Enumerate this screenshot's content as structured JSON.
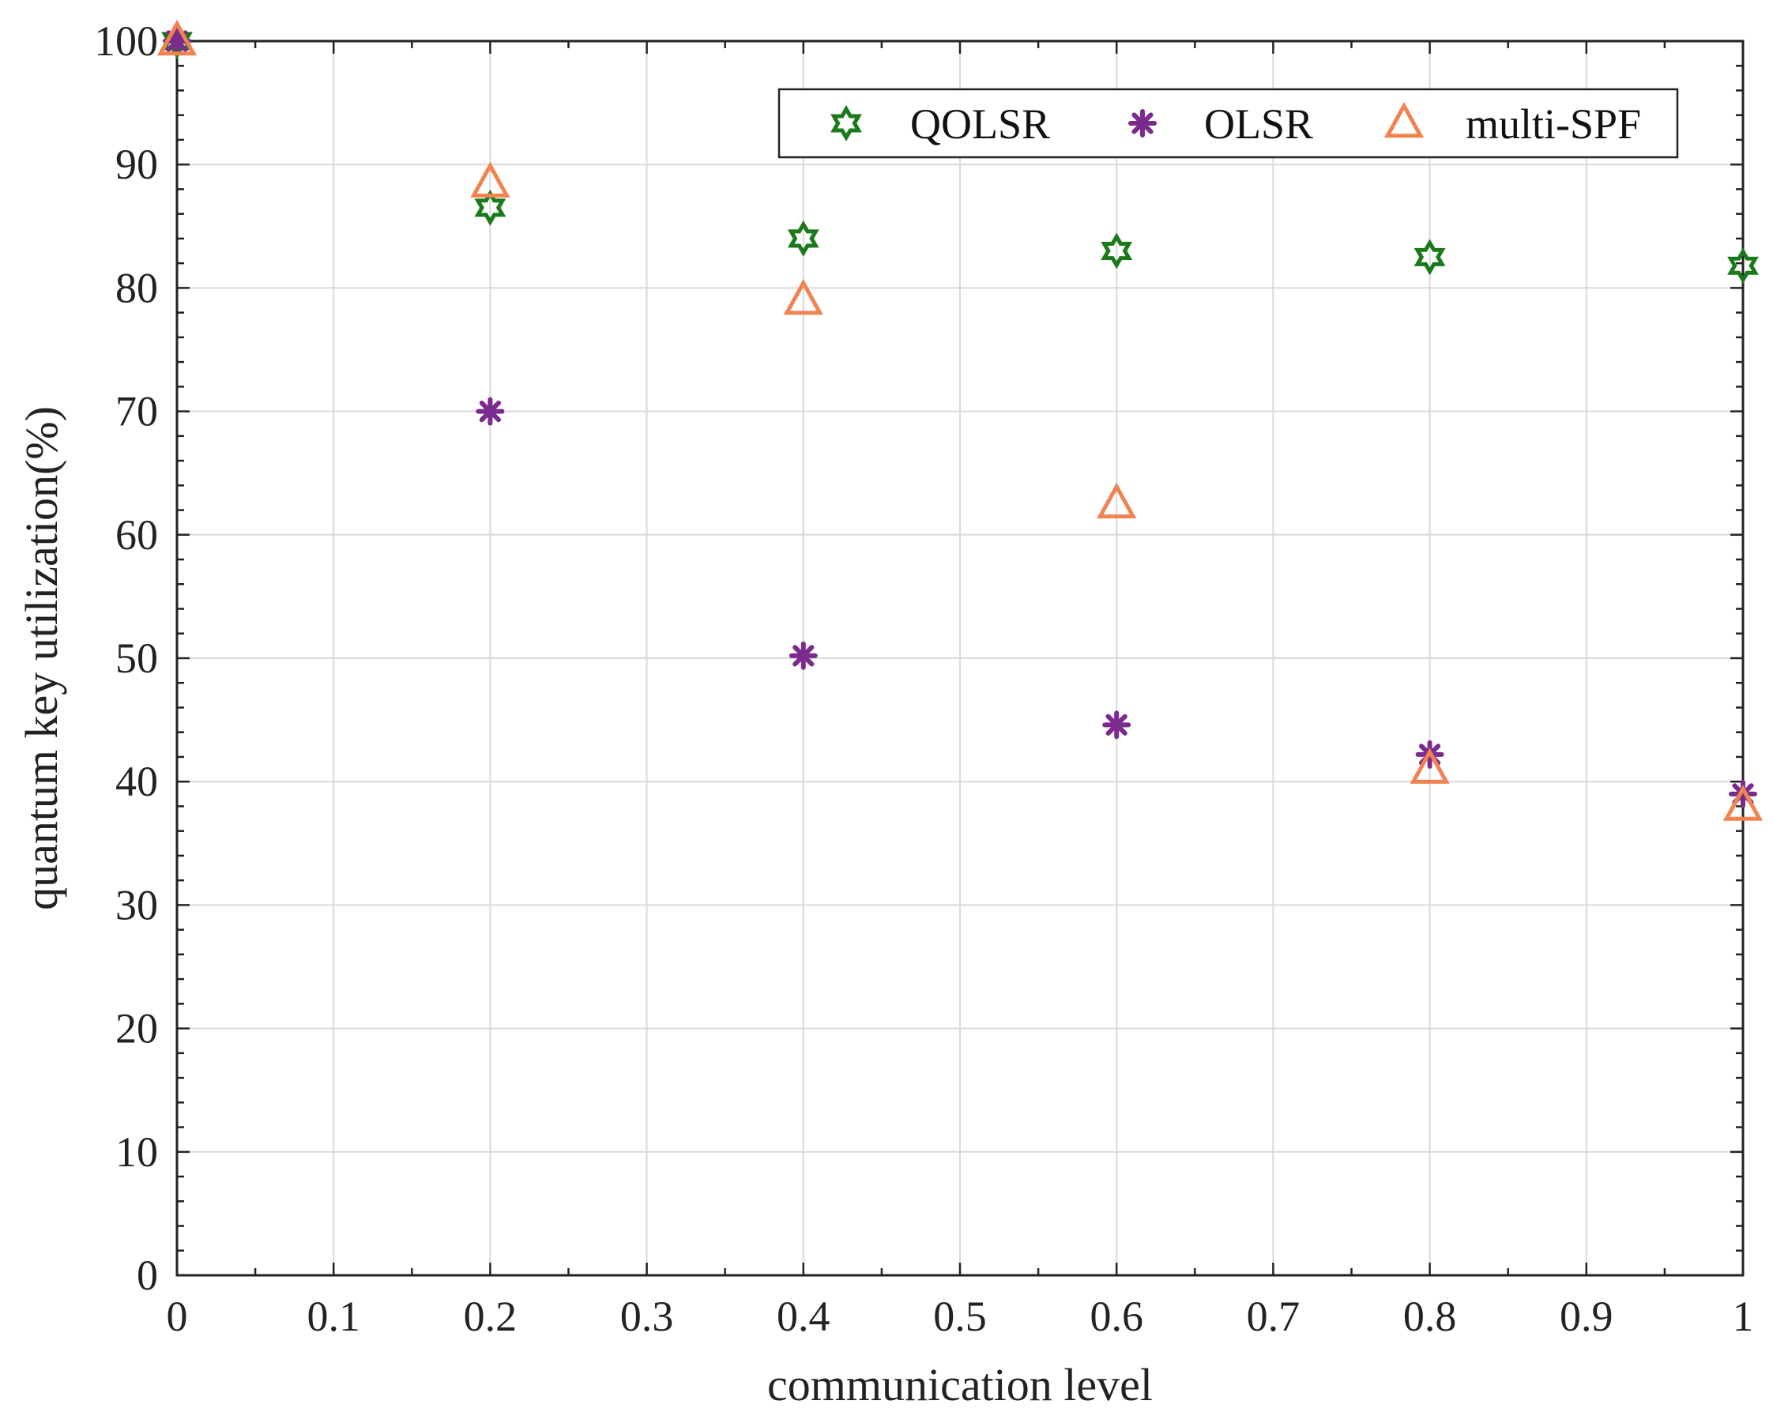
{
  "chart_data": {
    "type": "scatter",
    "title": "",
    "xlabel": "communication level",
    "ylabel": "quantum key utilization(%)",
    "xlim": [
      0,
      1
    ],
    "ylim": [
      0,
      100
    ],
    "xticks": [
      0,
      0.1,
      0.2,
      0.3,
      0.4,
      0.5,
      0.6,
      0.7,
      0.8,
      0.9,
      1
    ],
    "xtick_labels": [
      "0",
      "0.1",
      "0.2",
      "0.3",
      "0.4",
      "0.5",
      "0.6",
      "0.7",
      "0.8",
      "0.9",
      "1"
    ],
    "yticks": [
      0,
      10,
      20,
      30,
      40,
      50,
      60,
      70,
      80,
      90,
      100
    ],
    "ytick_labels": [
      "0",
      "10",
      "20",
      "30",
      "40",
      "50",
      "60",
      "70",
      "80",
      "90",
      "100"
    ],
    "grid": true,
    "legend_position": "top-right",
    "series": [
      {
        "name": "QOLSR",
        "marker": "hexagram",
        "color": "#1a7a1a",
        "x": [
          0,
          0.2,
          0.4,
          0.6,
          0.8,
          1
        ],
        "y": [
          100,
          86.5,
          84,
          83,
          82.5,
          81.8
        ]
      },
      {
        "name": "OLSR",
        "marker": "asterisk",
        "color": "#7b2a8e",
        "x": [
          0,
          0.2,
          0.4,
          0.6,
          0.8,
          1
        ],
        "y": [
          100,
          70,
          50.2,
          44.6,
          42.2,
          39
        ]
      },
      {
        "name": "multi-SPF",
        "marker": "triangle",
        "color": "#f0834f",
        "x": [
          0,
          0.2,
          0.4,
          0.6,
          0.8,
          1
        ],
        "y": [
          100,
          88.5,
          79,
          62.5,
          41,
          38
        ]
      }
    ]
  }
}
